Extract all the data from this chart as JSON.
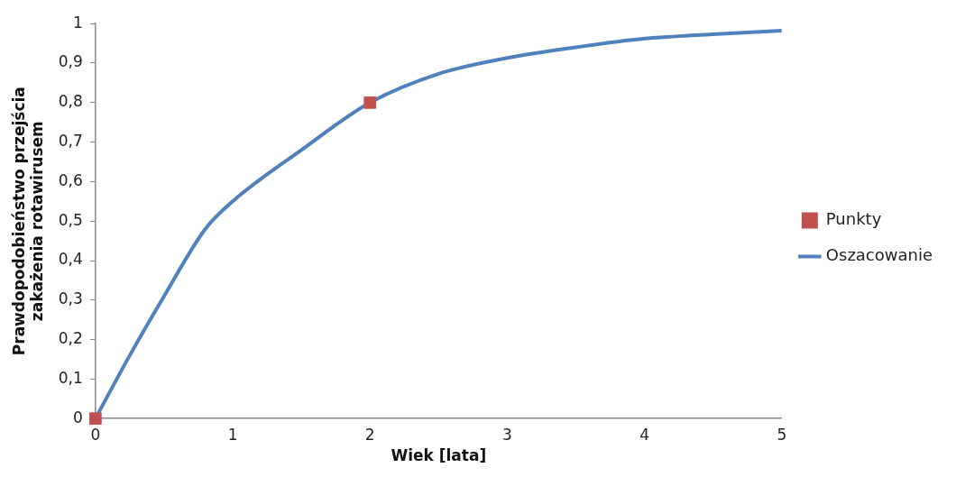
{
  "chart_data": {
    "type": "line",
    "xlabel": "Wiek [lata]",
    "ylabel": "Prawdopodobieństwo przejścia\nzakażenia rotawirusem",
    "xlim": [
      0,
      5
    ],
    "xticks": [
      0,
      1,
      2,
      3,
      4,
      5
    ],
    "ylim": [
      0,
      1
    ],
    "yticks": [
      0,
      {
        "value": 0.1,
        "label": "0,1"
      },
      {
        "value": 0.2,
        "label": "0,2"
      },
      {
        "value": 0.3,
        "label": "0,3"
      },
      {
        "value": 0.4,
        "label": "0,4"
      },
      {
        "value": 0.5,
        "label": "0,5"
      },
      {
        "value": 0.6,
        "label": "0,6"
      },
      {
        "value": 0.7,
        "label": "0,7"
      },
      {
        "value": 0.8,
        "label": "0,8"
      },
      {
        "value": 0.9,
        "label": "0,9"
      },
      1
    ],
    "grid": false,
    "legend": "right",
    "series": [
      {
        "name": "Punkty",
        "type": "scatter",
        "marker": "square",
        "color": "#c0504d",
        "x": [
          0,
          2
        ],
        "values": [
          0,
          0.8
        ]
      },
      {
        "name": "Oszacowanie",
        "marker": "none",
        "color": "#4f81bd",
        "x": [
          0,
          0.25,
          0.5,
          0.8,
          1,
          1.5,
          2,
          2.5,
          3,
          3.5,
          4,
          4.5,
          5
        ],
        "values": [
          0,
          0.16,
          0.31,
          0.48,
          0.55,
          0.68,
          0.8,
          0.873,
          0.913,
          0.94,
          0.962,
          0.973,
          0.982
        ]
      }
    ]
  }
}
